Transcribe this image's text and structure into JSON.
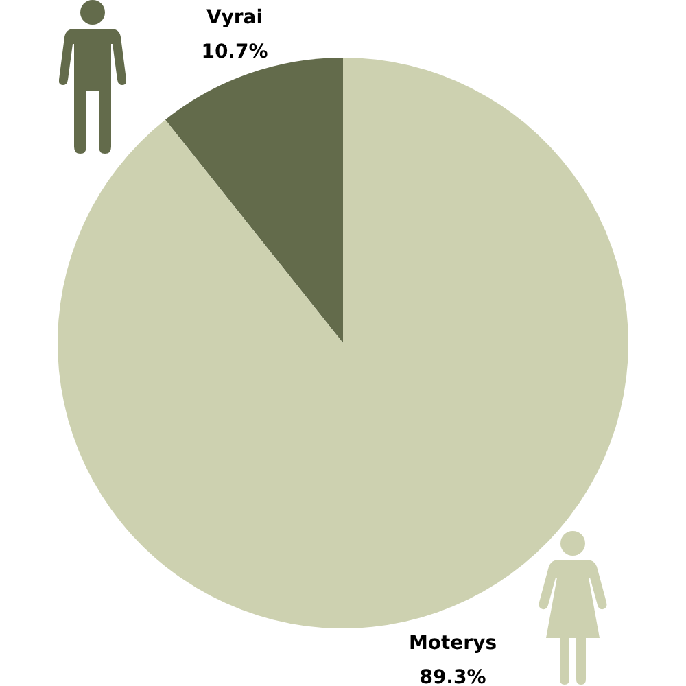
{
  "chart_data": {
    "type": "pie",
    "categories": [
      "Vyrai",
      "Moterys"
    ],
    "values": [
      10.7,
      89.3
    ],
    "colors": [
      "#636b4b",
      "#cdd1b0"
    ],
    "value_labels": [
      "10.7%",
      "89.3%"
    ]
  }
}
